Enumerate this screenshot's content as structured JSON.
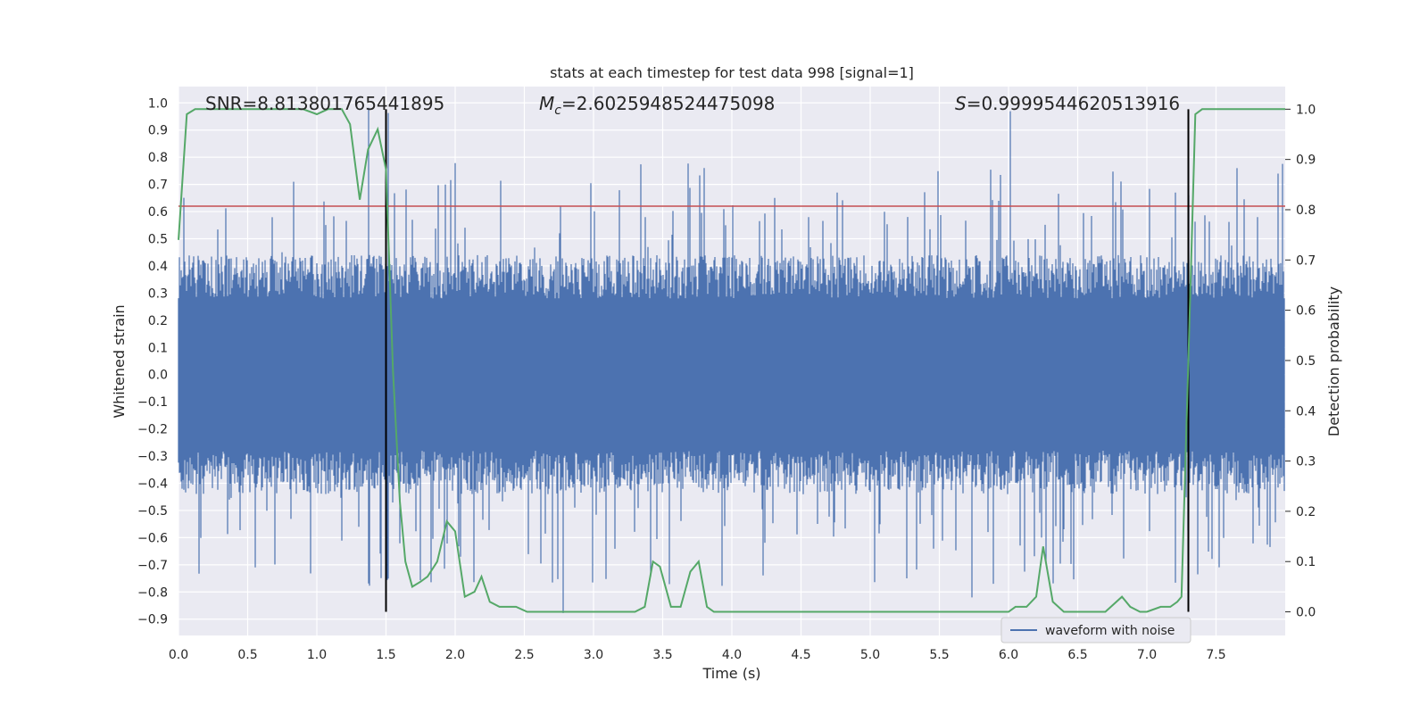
{
  "chart_data": {
    "type": "line",
    "title": "stats at each timestep for test data 998 [signal=1]",
    "xlabel": "Time (s)",
    "ylabel": "Whitened strain",
    "y2label": "Detection probability",
    "xlim": [
      0.0,
      8.0
    ],
    "ylim": [
      -0.96,
      1.06
    ],
    "y2lim": [
      -0.047,
      1.045
    ],
    "x_ticks": [
      "0.0",
      "0.5",
      "1.0",
      "1.5",
      "2.0",
      "2.5",
      "3.0",
      "3.5",
      "4.0",
      "4.5",
      "5.0",
      "5.5",
      "6.0",
      "6.5",
      "7.0",
      "7.5"
    ],
    "y_ticks": [
      "-0.9",
      "-0.8",
      "-0.7",
      "-0.6",
      "-0.5",
      "-0.4",
      "-0.3",
      "-0.2",
      "-0.1",
      "0.0",
      "0.1",
      "0.2",
      "0.3",
      "0.4",
      "0.5",
      "0.6",
      "0.7",
      "0.8",
      "0.9",
      "1.0"
    ],
    "y2_ticks": [
      "0.0",
      "0.1",
      "0.2",
      "0.3",
      "0.4",
      "0.5",
      "0.6",
      "0.7",
      "0.8",
      "0.9",
      "1.0"
    ],
    "annotations": {
      "snr_label": "SNR=8.813801765441895",
      "mc_label_symbol": "M",
      "mc_label_sub": "c",
      "mc_label_value": "=2.6025948524475098",
      "s_label_symbol": "S",
      "s_label_value": "=0.9999544620513916"
    },
    "threshold": 0.62,
    "vertical_lines": [
      1.5,
      7.3
    ],
    "series": [
      {
        "name": "waveform with noise",
        "color": "#4c72b0",
        "x_range": [
          0.0,
          8.0
        ],
        "approx_envelope": [
          -0.88,
          1.0
        ]
      },
      {
        "color": "#55a868",
        "axis": "right",
        "x": [
          0.0,
          0.06,
          0.12,
          0.2,
          0.3,
          0.4,
          0.5,
          0.6,
          0.7,
          0.8,
          0.9,
          1.0,
          1.08,
          1.18,
          1.24,
          1.31,
          1.37,
          1.44,
          1.5,
          1.55,
          1.6,
          1.64,
          1.69,
          1.75,
          1.8,
          1.87,
          1.94,
          2.0,
          2.07,
          2.14,
          2.19,
          2.25,
          2.32,
          2.37,
          2.44,
          2.52,
          2.6,
          2.8,
          3.0,
          3.2,
          3.3,
          3.37,
          3.43,
          3.48,
          3.56,
          3.63,
          3.7,
          3.76,
          3.82,
          3.87,
          4.0,
          4.2,
          4.3,
          4.5,
          5.0,
          5.5,
          5.8,
          6.0,
          6.05,
          6.13,
          6.2,
          6.25,
          6.32,
          6.4,
          6.55,
          6.7,
          6.82,
          6.88,
          6.95,
          7.0,
          7.1,
          7.17,
          7.22,
          7.25,
          7.3,
          7.35,
          7.4,
          7.47,
          7.6,
          8.0
        ],
        "values": [
          0.74,
          0.99,
          1.0,
          1.0,
          1.0,
          1.0,
          1.0,
          1.0,
          1.0,
          1.0,
          1.0,
          0.99,
          1.0,
          1.0,
          0.97,
          0.82,
          0.92,
          0.96,
          0.88,
          0.48,
          0.22,
          0.1,
          0.05,
          0.06,
          0.07,
          0.1,
          0.18,
          0.16,
          0.03,
          0.04,
          0.07,
          0.02,
          0.01,
          0.01,
          0.01,
          0.0,
          0.0,
          0.0,
          0.0,
          0.0,
          0.0,
          0.01,
          0.1,
          0.09,
          0.01,
          0.01,
          0.08,
          0.1,
          0.01,
          0.0,
          0.0,
          0.0,
          0.0,
          0.0,
          0.0,
          0.0,
          0.0,
          0.0,
          0.01,
          0.01,
          0.03,
          0.13,
          0.02,
          0.0,
          0.0,
          0.0,
          0.03,
          0.01,
          0.0,
          0.0,
          0.01,
          0.01,
          0.02,
          0.03,
          0.5,
          0.99,
          1.0,
          1.0,
          1.0,
          1.0
        ]
      }
    ],
    "colors": {
      "background": "#eaeaf2",
      "grid": "#ffffff",
      "threshold": "#c44e52",
      "vline": "#000000"
    },
    "legend_placement": "lower-right",
    "grid": true
  }
}
